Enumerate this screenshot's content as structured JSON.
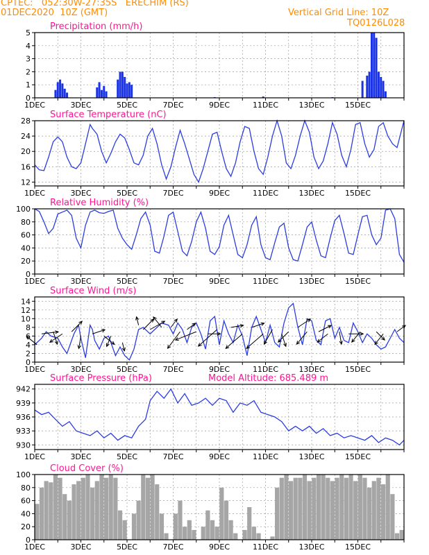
{
  "header": {
    "line1": "CPTEC:   052:30W-27:35S   ERECHIM (RS)",
    "line2": "01DEC2020  10Z (GMT)",
    "grid_note": "Vertical Grid Line: 10Z",
    "model": "TQ0126L028",
    "model_altitude": "Model Altitude: 685.489  m"
  },
  "colors": {
    "header": "#ff8c00",
    "title": "#ff1493",
    "line": "#2a3ce0",
    "bar": "#1a33e6",
    "cloud": "#a6a6a6",
    "arrow": "#000000",
    "grid": "#9a9a9a"
  },
  "x_ticks": [
    "1DEC",
    "3DEC",
    "5DEC",
    "7DEC",
    "9DEC",
    "11DEC",
    "13DEC",
    "15DEC"
  ],
  "chart_data": [
    {
      "type": "bar",
      "title": "Precipitation (mm/h)",
      "ylim": [
        0,
        5
      ],
      "yticks": [
        0,
        1,
        2,
        3,
        4,
        5
      ],
      "x": [
        0.9,
        1.0,
        1.1,
        1.2,
        1.3,
        1.4,
        2.7,
        2.8,
        2.9,
        3.0,
        3.1,
        3.6,
        3.7,
        3.8,
        3.9,
        4.0,
        4.1,
        4.2,
        7.8,
        9.9,
        12.9,
        14.2,
        14.4,
        14.5,
        14.6,
        14.7,
        14.8,
        14.9,
        15.0,
        15.1,
        15.2
      ],
      "values": [
        0.6,
        1.2,
        1.4,
        1.1,
        0.7,
        0.4,
        0.8,
        1.2,
        0.6,
        0.9,
        0.5,
        1.4,
        2.0,
        2.0,
        1.6,
        1.1,
        1.2,
        1.0,
        0.05,
        0.1,
        0.05,
        1.3,
        1.7,
        2.0,
        5.0,
        5.0,
        4.6,
        2.0,
        1.6,
        1.3,
        0.5
      ]
    },
    {
      "type": "line",
      "title": "Surface Temperature (nC)",
      "ylim": [
        11,
        28
      ],
      "yticks": [
        12,
        16,
        20,
        24,
        28
      ],
      "x": [
        0.0,
        0.2,
        0.4,
        0.6,
        0.8,
        1.0,
        1.2,
        1.4,
        1.6,
        1.8,
        2.0,
        2.2,
        2.4,
        2.5,
        2.7,
        2.9,
        3.1,
        3.3,
        3.5,
        3.7,
        3.9,
        4.1,
        4.3,
        4.5,
        4.7,
        4.9,
        5.1,
        5.3,
        5.5,
        5.7,
        5.9,
        6.1,
        6.3,
        6.5,
        6.7,
        6.9,
        7.1,
        7.3,
        7.5,
        7.7,
        7.9,
        8.1,
        8.3,
        8.5,
        8.7,
        8.9,
        9.1,
        9.3,
        9.5,
        9.7,
        9.9,
        10.1,
        10.3,
        10.5,
        10.7,
        10.9,
        11.1,
        11.3,
        11.5,
        11.7,
        11.9,
        12.1,
        12.3,
        12.5,
        12.7,
        12.9,
        13.1,
        13.3,
        13.5,
        13.7,
        13.9,
        14.1,
        14.3,
        14.5,
        14.7,
        14.9,
        15.1,
        15.3,
        15.5,
        15.7,
        16.0
      ],
      "values": [
        16.5,
        15.2,
        15.0,
        18.5,
        22.5,
        23.8,
        22.5,
        18.5,
        16.0,
        15.5,
        17.0,
        22.0,
        27.0,
        26.0,
        24.5,
        20.0,
        17.0,
        19.5,
        22.5,
        24.5,
        23.5,
        20.5,
        17.0,
        16.5,
        19.0,
        24.0,
        26.0,
        22.0,
        16.5,
        12.8,
        16.0,
        21.0,
        25.5,
        22.0,
        18.0,
        14.0,
        12.0,
        15.5,
        20.0,
        24.5,
        25.0,
        20.0,
        15.5,
        13.5,
        17.0,
        22.5,
        26.5,
        26.0,
        20.0,
        15.5,
        14.0,
        18.5,
        24.0,
        28.0,
        24.0,
        17.0,
        15.5,
        19.0,
        24.0,
        28.0,
        25.0,
        18.5,
        15.5,
        17.5,
        22.0,
        27.5,
        24.5,
        19.0,
        16.0,
        20.5,
        27.0,
        27.5,
        22.0,
        18.5,
        20.5,
        26.5,
        27.5,
        24.0,
        22.0,
        21.0,
        28.0
      ]
    },
    {
      "type": "line",
      "title": "Relative Humidity (%)",
      "ylim": [
        0,
        100
      ],
      "yticks": [
        0,
        20,
        40,
        60,
        80,
        100
      ],
      "x": [
        0.0,
        0.2,
        0.4,
        0.6,
        0.8,
        1.0,
        1.2,
        1.4,
        1.6,
        1.8,
        2.0,
        2.2,
        2.4,
        2.6,
        2.8,
        3.0,
        3.2,
        3.4,
        3.6,
        3.8,
        4.0,
        4.2,
        4.4,
        4.6,
        4.8,
        5.0,
        5.2,
        5.4,
        5.6,
        5.8,
        6.0,
        6.2,
        6.4,
        6.6,
        6.8,
        7.0,
        7.2,
        7.4,
        7.6,
        7.8,
        8.0,
        8.2,
        8.4,
        8.6,
        8.8,
        9.0,
        9.2,
        9.4,
        9.6,
        9.8,
        10.0,
        10.2,
        10.4,
        10.6,
        10.8,
        11.0,
        11.2,
        11.4,
        11.6,
        11.8,
        12.0,
        12.2,
        12.4,
        12.6,
        12.8,
        13.0,
        13.2,
        13.4,
        13.6,
        13.8,
        14.0,
        14.2,
        14.4,
        14.6,
        14.8,
        15.0,
        15.2,
        15.4,
        15.6,
        15.8,
        16.0
      ],
      "values": [
        100,
        96,
        80,
        62,
        70,
        92,
        95,
        98,
        90,
        55,
        40,
        75,
        95,
        98,
        94,
        93,
        96,
        98,
        70,
        55,
        45,
        38,
        60,
        85,
        95,
        75,
        35,
        32,
        58,
        90,
        95,
        65,
        35,
        28,
        50,
        80,
        95,
        70,
        35,
        30,
        42,
        75,
        90,
        60,
        30,
        25,
        45,
        75,
        88,
        45,
        25,
        22,
        48,
        72,
        78,
        40,
        22,
        20,
        45,
        72,
        80,
        52,
        28,
        25,
        55,
        82,
        90,
        62,
        32,
        30,
        60,
        88,
        90,
        60,
        45,
        55,
        98,
        100,
        85,
        30,
        18
      ]
    },
    {
      "type": "line",
      "title": "Surface Wind (m/s)",
      "ylim": [
        0,
        15
      ],
      "yticks": [
        0,
        2,
        4,
        6,
        8,
        10,
        12,
        14
      ],
      "x": [
        0.0,
        0.3,
        0.5,
        0.7,
        1.0,
        1.2,
        1.4,
        1.7,
        1.9,
        2.0,
        2.2,
        2.4,
        2.5,
        2.6,
        2.8,
        3.0,
        3.2,
        3.4,
        3.5,
        3.7,
        3.9,
        4.1,
        4.3,
        4.5,
        4.7,
        5.0,
        5.2,
        5.5,
        5.8,
        6.0,
        6.2,
        6.4,
        6.6,
        6.8,
        7.0,
        7.2,
        7.4,
        7.6,
        7.8,
        8.0,
        8.2,
        8.4,
        8.6,
        8.8,
        9.0,
        9.2,
        9.4,
        9.6,
        9.8,
        10.0,
        10.2,
        10.4,
        10.6,
        10.8,
        11.0,
        11.2,
        11.4,
        11.6,
        11.8,
        12.0,
        12.2,
        12.4,
        12.6,
        12.8,
        13.0,
        13.2,
        13.4,
        13.6,
        13.8,
        14.0,
        14.2,
        14.4,
        14.6,
        14.8,
        15.0,
        15.2,
        15.4,
        15.6,
        15.8,
        16.0
      ],
      "values": [
        4.0,
        5.5,
        7.0,
        6.0,
        5.5,
        3.5,
        2.0,
        6.5,
        8.5,
        5.5,
        1.0,
        8.5,
        7.5,
        5.0,
        3.0,
        5.5,
        6.0,
        3.0,
        1.5,
        3.5,
        1.5,
        0.5,
        3.0,
        7.5,
        8.0,
        6.5,
        7.5,
        9.0,
        8.5,
        6.5,
        9.0,
        7.5,
        4.5,
        8.0,
        9.0,
        6.5,
        3.0,
        9.5,
        10.5,
        4.0,
        9.5,
        6.5,
        4.5,
        8.5,
        6.0,
        1.5,
        8.0,
        10.5,
        7.5,
        4.5,
        8.5,
        4.5,
        3.5,
        9.0,
        12.5,
        13.5,
        8.0,
        4.0,
        10.0,
        9.5,
        5.0,
        4.0,
        9.5,
        10.0,
        5.5,
        8.0,
        5.0,
        4.5,
        9.0,
        7.0,
        4.5,
        6.5,
        5.5,
        4.0,
        3.0,
        3.5,
        5.5,
        7.5,
        5.5,
        4.5
      ],
      "vectors": [
        {
          "x": 0.1,
          "y": 4.0,
          "dx": -5,
          "dy": 4
        },
        {
          "x": 0.3,
          "y": 6.5,
          "dx": 8,
          "dy": 1
        },
        {
          "x": 0.8,
          "y": 7.0,
          "dx": 2,
          "dy": -6
        },
        {
          "x": 1.2,
          "y": 6.5,
          "dx": -6,
          "dy": -4
        },
        {
          "x": 1.6,
          "y": 7.0,
          "dx": 5,
          "dy": 5
        },
        {
          "x": 2.0,
          "y": 6.0,
          "dx": -1,
          "dy": -6
        },
        {
          "x": 2.5,
          "y": 6.5,
          "dx": 6,
          "dy": 2
        },
        {
          "x": 3.0,
          "y": 6.0,
          "dx": 5,
          "dy": -4
        },
        {
          "x": 3.3,
          "y": 6.0,
          "dx": -2,
          "dy": -5
        },
        {
          "x": 3.8,
          "y": 4.5,
          "dx": 1,
          "dy": -4
        },
        {
          "x": 4.5,
          "y": 8.5,
          "dx": -1,
          "dy": 4
        },
        {
          "x": 4.7,
          "y": 7.5,
          "dx": 5,
          "dy": 5
        },
        {
          "x": 5.0,
          "y": 7.5,
          "dx": 7,
          "dy": 4
        },
        {
          "x": 5.5,
          "y": 8.0,
          "dx": -4,
          "dy": 5
        },
        {
          "x": 5.9,
          "y": 8.0,
          "dx": 3,
          "dy": 4
        },
        {
          "x": 6.3,
          "y": 7.0,
          "dx": -6,
          "dy": -8
        },
        {
          "x": 6.6,
          "y": 7.5,
          "dx": 4,
          "dy": 3
        },
        {
          "x": 7.0,
          "y": 7.0,
          "dx": -10,
          "dy": -4
        },
        {
          "x": 7.5,
          "y": 6.5,
          "dx": 6,
          "dy": 0
        },
        {
          "x": 7.9,
          "y": 7.5,
          "dx": -9,
          "dy": -8
        },
        {
          "x": 8.5,
          "y": 8.0,
          "dx": 6,
          "dy": 1
        },
        {
          "x": 9.0,
          "y": 6.5,
          "dx": -8,
          "dy": -7
        },
        {
          "x": 9.4,
          "y": 8.0,
          "dx": 6,
          "dy": 2
        },
        {
          "x": 9.9,
          "y": 6.5,
          "dx": -8,
          "dy": -7
        },
        {
          "x": 10.3,
          "y": 7.5,
          "dx": -4,
          "dy": -7
        },
        {
          "x": 10.7,
          "y": 6.5,
          "dx": 2,
          "dy": -6
        },
        {
          "x": 11.0,
          "y": 7.0,
          "dx": -5,
          "dy": -5
        },
        {
          "x": 11.4,
          "y": 8.0,
          "dx": 6,
          "dy": 4
        },
        {
          "x": 11.8,
          "y": 7.0,
          "dx": -5,
          "dy": -6
        },
        {
          "x": 12.3,
          "y": 7.0,
          "dx": 6,
          "dy": 3
        },
        {
          "x": 12.7,
          "y": 6.5,
          "dx": -5,
          "dy": -4
        },
        {
          "x": 13.2,
          "y": 7.0,
          "dx": 1,
          "dy": -6
        },
        {
          "x": 13.6,
          "y": 6.5,
          "dx": 7,
          "dy": 0
        },
        {
          "x": 14.1,
          "y": 7.0,
          "dx": -4,
          "dy": -5
        },
        {
          "x": 14.8,
          "y": 7.0,
          "dx": 4,
          "dy": -4
        },
        {
          "x": 15.1,
          "y": 6.5,
          "dx": -4,
          "dy": -5
        },
        {
          "x": 15.7,
          "y": 7.0,
          "dx": 4,
          "dy": 3
        }
      ]
    },
    {
      "type": "line",
      "title": "Surface Pressure (hPa)",
      "ylim": [
        929,
        943
      ],
      "yticks": [
        930,
        933,
        936,
        939,
        942
      ],
      "x": [
        0.0,
        0.3,
        0.6,
        0.9,
        1.2,
        1.5,
        1.8,
        2.1,
        2.4,
        2.7,
        3.0,
        3.3,
        3.6,
        3.9,
        4.2,
        4.5,
        4.8,
        5.0,
        5.3,
        5.6,
        5.9,
        6.2,
        6.5,
        6.8,
        7.1,
        7.4,
        7.7,
        8.0,
        8.3,
        8.6,
        8.9,
        9.2,
        9.5,
        9.8,
        10.1,
        10.4,
        10.7,
        11.0,
        11.3,
        11.6,
        11.9,
        12.2,
        12.5,
        12.8,
        13.1,
        13.4,
        13.7,
        14.0,
        14.3,
        14.6,
        14.9,
        15.2,
        15.5,
        15.8,
        16.0
      ],
      "values": [
        937.5,
        936.5,
        937.0,
        935.5,
        934.0,
        935.0,
        933.0,
        932.5,
        932.0,
        933.0,
        931.5,
        932.5,
        931.0,
        932.0,
        931.5,
        934.0,
        935.5,
        939.5,
        941.5,
        940.0,
        942.0,
        939.0,
        941.0,
        938.5,
        939.0,
        940.0,
        938.5,
        940.0,
        939.5,
        937.0,
        939.0,
        938.5,
        939.5,
        937.0,
        936.5,
        936.0,
        935.0,
        933.0,
        934.0,
        933.0,
        934.0,
        932.5,
        933.5,
        932.0,
        932.5,
        931.5,
        932.0,
        931.5,
        931.0,
        932.0,
        930.5,
        931.5,
        931.0,
        930.0,
        931.0
      ]
    },
    {
      "type": "bar",
      "title": "Cloud Cover (%)",
      "ylim": [
        0,
        100
      ],
      "yticks": [
        0,
        20,
        40,
        60,
        80,
        100
      ],
      "x": [
        0.1,
        0.3,
        0.5,
        0.7,
        0.9,
        1.1,
        1.3,
        1.5,
        1.7,
        1.9,
        2.1,
        2.3,
        2.5,
        2.7,
        2.9,
        3.1,
        3.3,
        3.5,
        3.7,
        3.9,
        4.1,
        4.3,
        4.5,
        4.7,
        4.9,
        5.1,
        5.3,
        5.5,
        5.7,
        5.9,
        6.1,
        6.3,
        6.5,
        6.7,
        6.9,
        7.1,
        7.3,
        7.5,
        7.7,
        7.9,
        8.1,
        8.3,
        8.5,
        8.7,
        8.9,
        9.1,
        9.3,
        9.5,
        9.7,
        9.9,
        10.1,
        10.3,
        10.5,
        10.7,
        10.9,
        11.1,
        11.3,
        11.5,
        11.7,
        11.9,
        12.1,
        12.3,
        12.5,
        12.7,
        12.9,
        13.1,
        13.3,
        13.5,
        13.7,
        13.9,
        14.1,
        14.3,
        14.5,
        14.7,
        14.9,
        15.1,
        15.3,
        15.5,
        15.7,
        15.9
      ],
      "values": [
        55,
        80,
        90,
        88,
        100,
        95,
        70,
        60,
        85,
        90,
        95,
        100,
        80,
        90,
        100,
        95,
        100,
        95,
        45,
        30,
        0,
        40,
        60,
        100,
        95,
        100,
        85,
        40,
        10,
        0,
        40,
        60,
        20,
        30,
        15,
        0,
        20,
        45,
        30,
        20,
        80,
        60,
        30,
        10,
        0,
        15,
        50,
        20,
        10,
        0,
        0,
        5,
        80,
        95,
        100,
        90,
        95,
        95,
        100,
        90,
        95,
        100,
        100,
        95,
        90,
        95,
        100,
        95,
        100,
        90,
        100,
        95,
        80,
        90,
        95,
        85,
        100,
        70,
        10,
        15
      ]
    }
  ]
}
